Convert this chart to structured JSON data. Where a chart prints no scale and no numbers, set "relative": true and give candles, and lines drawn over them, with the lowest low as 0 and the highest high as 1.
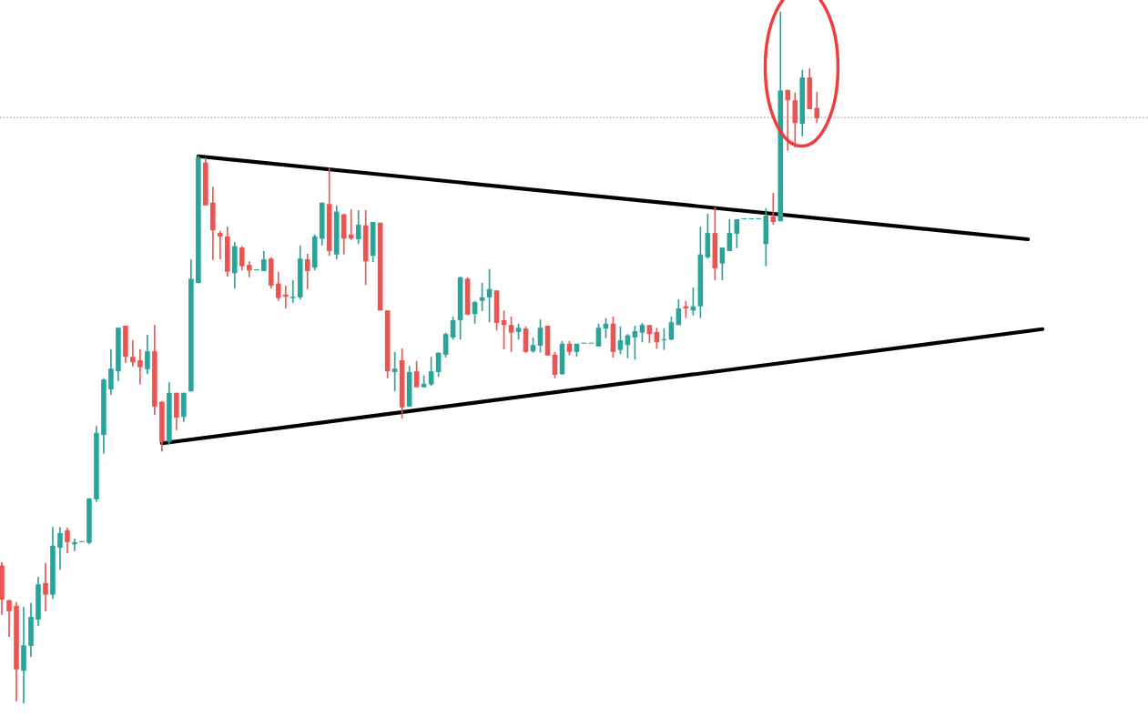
{
  "chart_data": {
    "type": "candlestick",
    "relative": true,
    "legend": false,
    "categories": [
      null,
      null,
      null,
      null,
      null,
      null,
      null,
      null,
      null,
      null,
      null,
      null,
      null,
      null,
      null,
      null,
      null,
      null,
      null,
      null,
      null,
      null,
      null,
      null,
      null,
      null,
      null,
      null,
      null,
      null,
      null,
      null,
      null,
      null,
      null,
      null,
      null,
      null,
      null,
      null,
      null,
      null,
      null,
      null,
      null,
      null,
      null,
      null,
      null,
      null,
      null,
      null,
      null,
      null,
      null,
      null,
      null,
      null,
      null,
      null,
      null,
      null,
      null,
      null,
      null,
      null,
      null,
      null,
      null,
      null,
      null,
      null,
      null,
      null,
      null,
      null,
      null,
      null,
      null,
      null,
      null,
      null,
      null,
      null,
      null,
      null,
      null,
      null,
      null,
      null,
      null,
      null,
      null,
      null,
      null,
      null,
      null,
      null,
      null,
      null,
      null,
      null,
      null,
      null,
      null,
      null,
      null,
      null,
      null,
      null,
      null,
      null,
      null,
      null,
      null,
      null,
      null,
      null,
      null,
      null,
      null,
      null,
      null,
      null,
      null,
      null,
      null,
      null,
      null,
      null,
      null,
      null,
      null,
      null,
      null,
      null,
      null,
      null,
      null,
      null,
      null,
      null,
      null,
      null
    ],
    "colors": [
      "#ef5350",
      "#ef5350",
      "#ef5350",
      "#26a69a",
      "#26a69a",
      "#26a69a",
      "#ef5350",
      "#26a69a",
      "#26a69a",
      "#ef5350",
      "#26a69a",
      "#26a69a",
      "#26a69a",
      "#26a69a",
      "#26a69a",
      "#26a69a",
      "#26a69a",
      "#ef5350",
      "#ef5350",
      "#ef5350",
      "#26a69a",
      "#ef5350",
      "#ef5350",
      "#26a69a",
      "#ef5350",
      "#26a69a",
      "#26a69a",
      "#26a69a",
      "#ef5350",
      "#ef5350",
      "#ef5350",
      "#ef5350",
      "#26a69a",
      "#ef5350",
      "#ef5350",
      "#26a69a",
      "#26a69a",
      "#ef5350",
      "#ef5350",
      "#ef5350",
      "#26a69a",
      "#26a69a",
      "#ef5350",
      "#26a69a",
      "#26a69a",
      "#ef5350",
      "#26a69a",
      "#ef5350",
      "#ef5350",
      "#26a69a",
      "#ef5350",
      "#26a69a",
      "#ef5350",
      "#ef5350",
      "#26a69a",
      "#ef5350",
      "#26a69a",
      "#ef5350",
      "#26a69a",
      "#26a69a",
      "#26a69a",
      "#26a69a",
      "#26a69a",
      "#26a69a",
      "#ef5350",
      "#26a69a",
      "#26a69a",
      "#26a69a",
      "#ef5350",
      "#ef5350",
      "#ef5350",
      "#26a69a",
      "#ef5350",
      "#26a69a",
      "#26a69a",
      "#ef5350",
      "#ef5350",
      "#26a69a",
      "#ef5350",
      "#26a69a",
      "#26a69a",
      "#26a69a",
      "#26a69a",
      "#26a69a",
      "#ef5350",
      "#26a69a",
      "#26a69a",
      "#26a69a",
      "#26a69a",
      "#ef5350",
      "#ef5350",
      "#26a69a",
      "#26a69a",
      "#26a69a",
      "#ef5350",
      "#26a69a",
      "#26a69a",
      "#26a69a",
      "#ef5350",
      "#26a69a",
      "#26a69a",
      "#26a69a",
      "#26a69a",
      "#26a69a",
      "#26a69a",
      "#26a69a",
      "#ef5350",
      "#26a69a",
      "#ef5350",
      "#ef5350",
      "#26a69a",
      "#ef5350",
      "#ef5350",
      null,
      null,
      null,
      null,
      null,
      null,
      null,
      null,
      null,
      null,
      null,
      null,
      null,
      null,
      null,
      null,
      null,
      null,
      null,
      null,
      null,
      null,
      null,
      null,
      null,
      null,
      null,
      null,
      null,
      null,
      null
    ],
    "ohlc": [
      [
        0.199,
        0.204,
        0.128,
        0.15
      ],
      [
        0.149,
        0.15,
        0.096,
        0.133
      ],
      [
        0.141,
        0.146,
        0.003,
        0.049
      ],
      [
        0.047,
        0.139,
        0,
        0.084
      ],
      [
        0.083,
        0.145,
        0.067,
        0.125
      ],
      [
        0.121,
        0.183,
        0.112,
        0.172
      ],
      [
        0.174,
        0.203,
        0.133,
        0.157
      ],
      [
        0.157,
        0.255,
        0.151,
        0.228
      ],
      [
        0.225,
        0.255,
        0.193,
        0.246
      ],
      [
        0.25,
        0.254,
        0.217,
        0.233
      ],
      [
        0.23,
        0.238,
        0.22,
        0.233
      ],
      [
        0.233,
        0.233,
        0.233,
        0.233
      ],
      [
        0.232,
        0.297,
        0.23,
        0.296
      ],
      [
        0.295,
        0.401,
        0.291,
        0.391
      ],
      [
        0.388,
        0.47,
        0.361,
        0.468
      ],
      [
        0.454,
        0.512,
        0.446,
        0.484
      ],
      [
        0.48,
        0.543,
        0.466,
        0.543
      ],
      [
        0.546,
        0.546,
        0.492,
        0.501
      ],
      [
        0.501,
        0.525,
        0.487,
        0.493
      ],
      [
        0.496,
        0.512,
        0.461,
        0.486
      ],
      [
        0.483,
        0.533,
        0.476,
        0.509
      ],
      [
        0.509,
        0.547,
        0.417,
        0.429
      ],
      [
        0.436,
        0.437,
        0.364,
        0.378
      ],
      [
        0.378,
        0.464,
        0.374,
        0.449
      ],
      [
        0.449,
        0.449,
        0.395,
        0.413
      ],
      [
        0.414,
        0.449,
        0.407,
        0.449
      ],
      [
        0.451,
        0.642,
        0.451,
        0.614
      ],
      [
        0.608,
        0.792,
        0.607,
        0.789
      ],
      [
        0.782,
        0.789,
        0.72,
        0.72
      ],
      [
        0.724,
        0.747,
        0.641,
        0.684
      ],
      [
        0.68,
        0.683,
        0.642,
        0.675
      ],
      [
        0.675,
        0.689,
        0.617,
        0.624
      ],
      [
        0.622,
        0.667,
        0.6,
        0.661
      ],
      [
        0.659,
        0.661,
        0.626,
        0.632
      ],
      [
        0.634,
        0.639,
        0.616,
        0.626
      ],
      [
        0.626,
        0.626,
        0.626,
        0.626
      ],
      [
        0.625,
        0.654,
        0.625,
        0.642
      ],
      [
        0.643,
        0.645,
        0.6,
        0.604
      ],
      [
        0.607,
        0.624,
        0.582,
        0.586
      ],
      [
        0.591,
        0.604,
        0.571,
        0.588
      ],
      [
        0.586,
        0.612,
        0.579,
        0.588
      ],
      [
        0.587,
        0.662,
        0.584,
        0.643
      ],
      [
        0.642,
        0.65,
        0.599,
        0.625
      ],
      [
        0.63,
        0.678,
        0.626,
        0.675
      ],
      [
        0.672,
        0.724,
        0.662,
        0.724
      ],
      [
        0.722,
        0.774,
        0.647,
        0.654
      ],
      [
        0.649,
        0.72,
        0.642,
        0.711
      ],
      [
        0.707,
        0.708,
        0.649,
        0.672
      ],
      [
        0.678,
        0.714,
        0.67,
        0.672
      ],
      [
        0.671,
        0.713,
        0.664,
        0.692
      ],
      [
        0.691,
        0.713,
        0.605,
        0.639
      ],
      [
        0.647,
        0.696,
        0.638,
        0.696
      ],
      [
        0.695,
        0.695,
        0.568,
        0.568
      ],
      [
        0.568,
        0.568,
        0.47,
        0.48
      ],
      [
        0.479,
        0.508,
        0.451,
        0.484
      ],
      [
        0.496,
        0.513,
        0.412,
        0.428
      ],
      [
        0.429,
        0.488,
        0.429,
        0.479
      ],
      [
        0.48,
        0.495,
        0.457,
        0.457
      ],
      [
        0.457,
        0.474,
        0.457,
        0.462
      ],
      [
        0.461,
        0.501,
        0.459,
        0.48
      ],
      [
        0.479,
        0.507,
        0.472,
        0.507
      ],
      [
        0.504,
        0.536,
        0.5,
        0.534
      ],
      [
        0.529,
        0.559,
        0.526,
        0.554
      ],
      [
        0.554,
        0.617,
        0.526,
        0.616
      ],
      [
        0.614,
        0.616,
        0.561,
        0.562
      ],
      [
        0.563,
        0.582,
        0.549,
        0.58
      ],
      [
        0.582,
        0.608,
        0.567,
        0.587
      ],
      [
        0.587,
        0.628,
        0.551,
        0.599
      ],
      [
        0.597,
        0.597,
        0.539,
        0.55
      ],
      [
        0.554,
        0.568,
        0.512,
        0.547
      ],
      [
        0.547,
        0.559,
        0.508,
        0.536
      ],
      [
        0.537,
        0.549,
        0.526,
        0.543
      ],
      [
        0.542,
        0.545,
        0.507,
        0.508
      ],
      [
        0.509,
        0.529,
        0.507,
        0.518
      ],
      [
        0.517,
        0.555,
        0.507,
        0.543
      ],
      [
        0.546,
        0.546,
        0.503,
        0.503
      ],
      [
        0.504,
        0.508,
        0.47,
        0.475
      ],
      [
        0.476,
        0.524,
        0.475,
        0.52
      ],
      [
        0.52,
        0.524,
        0.503,
        0.508
      ],
      [
        0.508,
        0.52,
        0.501,
        0.52
      ],
      [
        0.52,
        0.52,
        0.52,
        0.52
      ],
      [
        0.52,
        0.52,
        0.52,
        0.52
      ],
      [
        0.516,
        0.549,
        0.516,
        0.543
      ],
      [
        0.542,
        0.557,
        0.528,
        0.549
      ],
      [
        0.549,
        0.559,
        0.5,
        0.508
      ],
      [
        0.511,
        0.545,
        0.505,
        0.525
      ],
      [
        0.518,
        0.534,
        0.499,
        0.532
      ],
      [
        0.529,
        0.546,
        0.497,
        0.538
      ],
      [
        0.536,
        0.55,
        0.522,
        0.547
      ],
      [
        0.547,
        0.547,
        0.521,
        0.534
      ],
      [
        0.537,
        0.543,
        0.513,
        0.522
      ],
      [
        0.525,
        0.542,
        0.511,
        0.526
      ],
      [
        0.526,
        0.559,
        0.525,
        0.551
      ],
      [
        0.547,
        0.584,
        0.547,
        0.571
      ],
      [
        0.574,
        0.582,
        0.557,
        0.571
      ],
      [
        0.568,
        0.601,
        0.561,
        0.574
      ],
      [
        0.574,
        0.689,
        0.557,
        0.649
      ],
      [
        0.645,
        0.708,
        0.643,
        0.68
      ],
      [
        0.68,
        0.717,
        0.612,
        0.629
      ],
      [
        0.636,
        0.659,
        0.612,
        0.659
      ],
      [
        0.654,
        0.7,
        0.654,
        0.68
      ],
      [
        0.679,
        0.7,
        0.658,
        0.7
      ],
      [
        0.7,
        0.7,
        0.7,
        0.7
      ],
      [
        0.7,
        0.7,
        0.7,
        0.7
      ],
      [
        0.7,
        0.7,
        0.7,
        0.7
      ],
      [
        0.664,
        0.716,
        0.632,
        0.705
      ],
      [
        0.704,
        0.738,
        0.692,
        0.696
      ],
      [
        0.697,
        1,
        0.697,
        0.886
      ],
      [
        0.887,
        0.887,
        0.799,
        0.872
      ],
      [
        0.872,
        0.883,
        0.804,
        0.839
      ],
      [
        0.838,
        0.916,
        0.82,
        0.905
      ],
      [
        0.905,
        0.918,
        0.859,
        0.859
      ],
      [
        0.861,
        0.884,
        0.839,
        0.846
      ],
      null,
      null,
      null,
      null,
      null,
      null,
      null,
      null,
      null,
      null,
      null,
      null,
      null,
      null,
      null,
      null,
      null,
      null,
      null,
      null,
      null,
      null,
      null,
      null,
      null,
      null,
      null,
      null,
      null,
      null,
      null
    ],
    "series": [
      {
        "type": "line",
        "color": "#000000",
        "values": [
          null,
          null,
          null,
          null,
          null,
          null,
          null,
          null,
          null,
          null,
          null,
          null,
          null,
          null,
          null,
          null,
          null,
          null,
          null,
          null,
          null,
          null,
          null,
          null,
          null,
          null,
          null,
          0.791,
          null,
          null,
          null,
          null,
          null,
          null,
          null,
          null,
          null,
          null,
          null,
          null,
          null,
          null,
          null,
          null,
          null,
          null,
          null,
          null,
          null,
          null,
          null,
          null,
          null,
          null,
          null,
          null,
          null,
          null,
          null,
          null,
          null,
          null,
          null,
          null,
          null,
          null,
          null,
          null,
          null,
          null,
          null,
          null,
          null,
          null,
          null,
          null,
          null,
          null,
          null,
          null,
          null,
          null,
          null,
          null,
          null,
          null,
          null,
          null,
          null,
          null,
          null,
          null,
          null,
          null,
          null,
          null,
          null,
          null,
          null,
          null,
          null,
          null,
          null,
          null,
          null,
          null,
          null,
          null,
          null,
          null,
          null,
          null,
          null,
          null,
          null,
          null,
          null,
          null,
          null,
          null,
          null,
          null,
          null,
          null,
          null,
          null,
          null,
          null,
          null,
          null,
          null,
          null,
          null,
          null,
          null,
          null,
          null,
          null,
          null,
          null,
          null,
          0.671,
          null,
          null
        ]
      },
      {
        "type": "line",
        "color": "#000000",
        "values": [
          null,
          null,
          null,
          null,
          null,
          null,
          null,
          null,
          null,
          null,
          null,
          null,
          null,
          null,
          null,
          null,
          null,
          null,
          null,
          null,
          null,
          null,
          0.376,
          null,
          null,
          null,
          null,
          null,
          null,
          null,
          null,
          null,
          null,
          null,
          null,
          null,
          null,
          null,
          null,
          null,
          null,
          null,
          null,
          null,
          null,
          null,
          null,
          null,
          null,
          null,
          null,
          null,
          null,
          null,
          null,
          null,
          null,
          null,
          null,
          null,
          null,
          null,
          null,
          null,
          null,
          null,
          null,
          null,
          null,
          null,
          null,
          null,
          null,
          null,
          null,
          null,
          null,
          null,
          null,
          null,
          null,
          null,
          null,
          null,
          null,
          null,
          null,
          null,
          null,
          null,
          null,
          null,
          null,
          null,
          null,
          null,
          null,
          null,
          null,
          null,
          null,
          null,
          null,
          null,
          null,
          null,
          null,
          null,
          null,
          null,
          null,
          null,
          null,
          null,
          null,
          null,
          null,
          null,
          null,
          null,
          null,
          null,
          null,
          null,
          null,
          null,
          null,
          null,
          null,
          null,
          null,
          null,
          null,
          null,
          null,
          null,
          null,
          null,
          null,
          null,
          null,
          null,
          null,
          0.541
        ]
      }
    ],
    "ref_lines": [
      {
        "axis": "y",
        "value": 0.847,
        "color": "#b0b0b0",
        "line_style": "dotted"
      }
    ]
  }
}
